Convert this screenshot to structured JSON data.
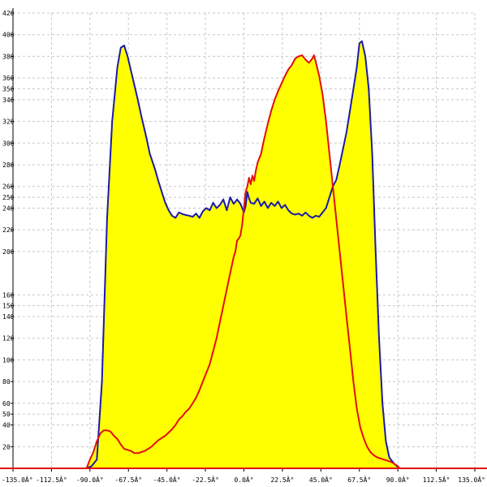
{
  "chart_data": {
    "type": "area",
    "title": "",
    "xlabel": "",
    "ylabel": "",
    "xlim": [
      -135,
      135
    ],
    "ylim": [
      0,
      420
    ],
    "grid": true,
    "colors": {
      "fill": "#ffff00",
      "blue_line": "#1a1aa8",
      "red_line": "#e01010",
      "axis": "#e01010",
      "grid": "#c8c8c8",
      "background": "#ffffff"
    },
    "x_ticks": [
      -135,
      -112.5,
      -90,
      -67.5,
      -45,
      -22.5,
      0,
      22.5,
      45,
      67.5,
      90,
      112.5,
      135
    ],
    "x_tick_labels": [
      "-135.0Â°",
      "-112.5Â°",
      "-90.0Â°",
      "-67.5Â°",
      "-45.0Â°",
      "-22.5Â°",
      "0.0Â°",
      "22.5Â°",
      "45.0Â°",
      "67.5Â°",
      "90.0Â°",
      "112.5Â°",
      "135.0Â°"
    ],
    "y_ticks": [
      20,
      40,
      50,
      60,
      80,
      100,
      120,
      140,
      150,
      160,
      200,
      220,
      240,
      250,
      260,
      280,
      300,
      320,
      340,
      350,
      360,
      380,
      400,
      420
    ],
    "y_tick_labels": [
      "20",
      "40",
      "50",
      "60",
      "80",
      "100",
      "120",
      "140",
      "150",
      "160",
      "200",
      "220",
      "240",
      "250",
      "260",
      "280",
      "300",
      "320",
      "340",
      "350",
      "360",
      "380",
      "400",
      "420"
    ],
    "series": [
      {
        "color": "blue",
        "filled": true,
        "points": [
          [
            -92,
            0
          ],
          [
            -89,
            2
          ],
          [
            -86,
            8
          ],
          [
            -83,
            80
          ],
          [
            -80,
            230
          ],
          [
            -77,
            320
          ],
          [
            -74,
            370
          ],
          [
            -72,
            388
          ],
          [
            -70,
            390
          ],
          [
            -68,
            380
          ],
          [
            -65,
            360
          ],
          [
            -62,
            340
          ],
          [
            -60,
            325
          ],
          [
            -57,
            305
          ],
          [
            -55,
            290
          ],
          [
            -52,
            276
          ],
          [
            -50,
            265
          ],
          [
            -48,
            255
          ],
          [
            -46,
            245
          ],
          [
            -44,
            238
          ],
          [
            -42,
            233
          ],
          [
            -40,
            231
          ],
          [
            -38,
            236
          ],
          [
            -35,
            234
          ],
          [
            -32,
            233
          ],
          [
            -30,
            232
          ],
          [
            -28,
            235
          ],
          [
            -26,
            231
          ],
          [
            -24,
            237
          ],
          [
            -22,
            240
          ],
          [
            -20,
            238
          ],
          [
            -18,
            245
          ],
          [
            -16,
            240
          ],
          [
            -14,
            243
          ],
          [
            -12,
            248
          ],
          [
            -10,
            238
          ],
          [
            -8,
            250
          ],
          [
            -6,
            244
          ],
          [
            -4,
            248
          ],
          [
            -2,
            244
          ],
          [
            0,
            236
          ],
          [
            1,
            242
          ],
          [
            2,
            255
          ],
          [
            3,
            249
          ],
          [
            4,
            245
          ],
          [
            6,
            244
          ],
          [
            8,
            249
          ],
          [
            10,
            242
          ],
          [
            12,
            246
          ],
          [
            14,
            240
          ],
          [
            16,
            245
          ],
          [
            18,
            242
          ],
          [
            20,
            246
          ],
          [
            22,
            240
          ],
          [
            24,
            243
          ],
          [
            26,
            238
          ],
          [
            28,
            235
          ],
          [
            30,
            234
          ],
          [
            32,
            235
          ],
          [
            34,
            233
          ],
          [
            36,
            236
          ],
          [
            38,
            233
          ],
          [
            40,
            231
          ],
          [
            42,
            233
          ],
          [
            44,
            232
          ],
          [
            46,
            236
          ],
          [
            48,
            240
          ],
          [
            50,
            250
          ],
          [
            52,
            260
          ],
          [
            54,
            266
          ],
          [
            56,
            280
          ],
          [
            58,
            295
          ],
          [
            60,
            310
          ],
          [
            62,
            330
          ],
          [
            64,
            350
          ],
          [
            66,
            370
          ],
          [
            67.5,
            392
          ],
          [
            69,
            394
          ],
          [
            71,
            380
          ],
          [
            73,
            350
          ],
          [
            75,
            290
          ],
          [
            77,
            200
          ],
          [
            79,
            120
          ],
          [
            81,
            60
          ],
          [
            83,
            25
          ],
          [
            85,
            10
          ],
          [
            88,
            4
          ],
          [
            91,
            0
          ]
        ]
      },
      {
        "color": "red",
        "filled": true,
        "points": [
          [
            -92,
            0
          ],
          [
            -90,
            8
          ],
          [
            -88,
            15
          ],
          [
            -86,
            25
          ],
          [
            -84,
            32
          ],
          [
            -82,
            35
          ],
          [
            -80,
            35
          ],
          [
            -78,
            34
          ],
          [
            -76,
            30
          ],
          [
            -74,
            27
          ],
          [
            -72,
            22
          ],
          [
            -70,
            18
          ],
          [
            -68,
            17
          ],
          [
            -66,
            16
          ],
          [
            -64,
            14
          ],
          [
            -62,
            14
          ],
          [
            -60,
            15
          ],
          [
            -58,
            16
          ],
          [
            -56,
            18
          ],
          [
            -54,
            20
          ],
          [
            -52,
            23
          ],
          [
            -50,
            26
          ],
          [
            -48,
            28
          ],
          [
            -46,
            30
          ],
          [
            -44,
            33
          ],
          [
            -42,
            36
          ],
          [
            -40,
            40
          ],
          [
            -38,
            45
          ],
          [
            -36,
            48
          ],
          [
            -34,
            52
          ],
          [
            -32,
            55
          ],
          [
            -30,
            60
          ],
          [
            -28,
            65
          ],
          [
            -26,
            72
          ],
          [
            -24,
            80
          ],
          [
            -22,
            88
          ],
          [
            -20,
            96
          ],
          [
            -18,
            108
          ],
          [
            -16,
            120
          ],
          [
            -14,
            135
          ],
          [
            -12,
            150
          ],
          [
            -10,
            165
          ],
          [
            -8,
            180
          ],
          [
            -6,
            195
          ],
          [
            -5,
            200
          ],
          [
            -4,
            210
          ],
          [
            -3,
            212
          ],
          [
            -2,
            215
          ],
          [
            -1,
            225
          ],
          [
            0,
            240
          ],
          [
            1,
            255
          ],
          [
            2,
            260
          ],
          [
            3,
            268
          ],
          [
            4,
            262
          ],
          [
            5,
            270
          ],
          [
            6,
            265
          ],
          [
            7,
            275
          ],
          [
            8,
            282
          ],
          [
            10,
            290
          ],
          [
            12,
            305
          ],
          [
            14,
            318
          ],
          [
            16,
            330
          ],
          [
            18,
            340
          ],
          [
            20,
            348
          ],
          [
            22,
            355
          ],
          [
            24,
            362
          ],
          [
            26,
            368
          ],
          [
            28,
            372
          ],
          [
            30,
            378
          ],
          [
            32,
            380
          ],
          [
            34,
            381
          ],
          [
            36,
            377
          ],
          [
            38,
            374
          ],
          [
            40,
            378
          ],
          [
            41,
            381
          ],
          [
            42,
            375
          ],
          [
            44,
            362
          ],
          [
            46,
            345
          ],
          [
            48,
            320
          ],
          [
            50,
            290
          ],
          [
            52,
            260
          ],
          [
            54,
            230
          ],
          [
            56,
            200
          ],
          [
            58,
            170
          ],
          [
            60,
            140
          ],
          [
            62,
            110
          ],
          [
            64,
            80
          ],
          [
            66,
            55
          ],
          [
            68,
            38
          ],
          [
            70,
            28
          ],
          [
            72,
            20
          ],
          [
            74,
            15
          ],
          [
            76,
            12
          ],
          [
            78,
            10
          ],
          [
            80,
            9
          ],
          [
            82,
            8
          ],
          [
            84,
            7
          ],
          [
            86,
            6
          ],
          [
            88,
            4
          ],
          [
            90,
            2
          ],
          [
            91,
            0
          ]
        ]
      }
    ]
  }
}
